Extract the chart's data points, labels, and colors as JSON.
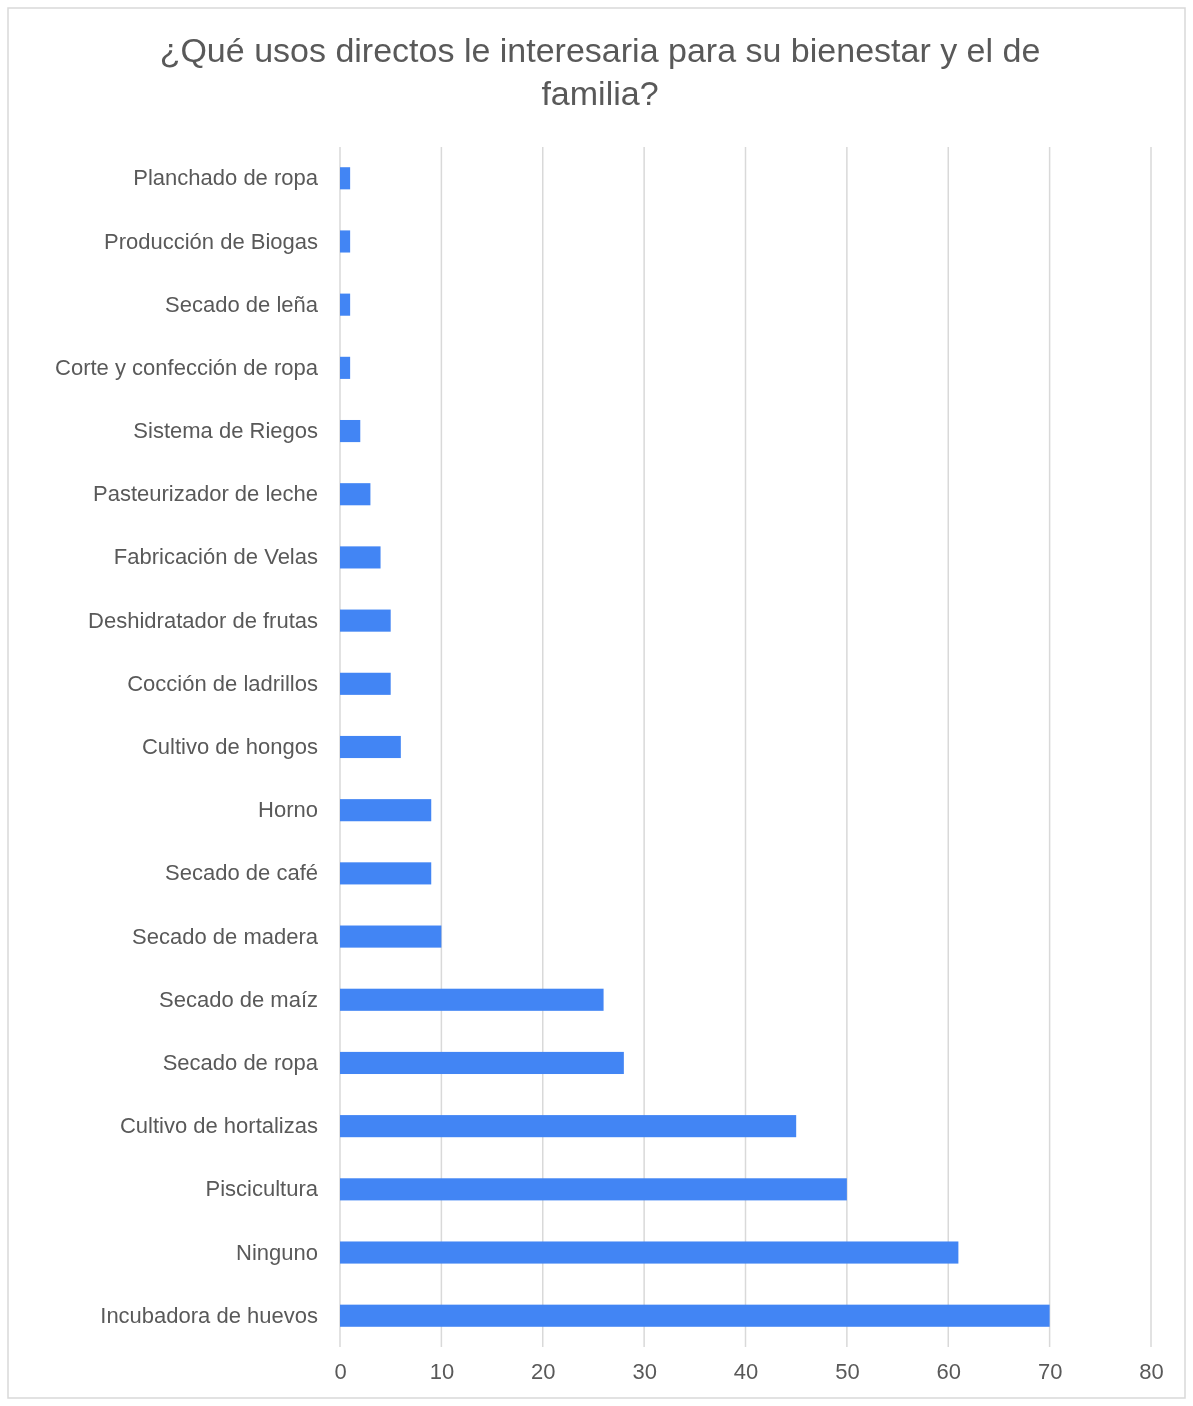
{
  "chart_data": {
    "type": "bar",
    "orientation": "horizontal",
    "title": "¿Qué usos directos le interesaria para su bienestar y el de familia?",
    "categories": [
      "Planchado de ropa",
      "Producción de Biogas",
      "Secado de leña",
      "Corte y confección de ropa",
      "Sistema de Riegos",
      "Pasteurizador de leche",
      "Fabricación de Velas",
      "Deshidratador de frutas",
      "Cocción de ladrillos",
      "Cultivo de hongos",
      "Horno",
      "Secado de café",
      "Secado de madera",
      "Secado de maíz",
      "Secado de ropa",
      "Cultivo de hortalizas",
      "Piscicultura",
      "Ninguno",
      "Incubadora de huevos"
    ],
    "values": [
      1,
      1,
      1,
      1,
      2,
      3,
      4,
      5,
      5,
      6,
      9,
      9,
      10,
      26,
      28,
      45,
      50,
      61,
      70
    ],
    "color": "#4285f4",
    "xlim": [
      0,
      80
    ],
    "xticks": [
      0,
      10,
      20,
      30,
      40,
      50,
      60,
      70,
      80
    ],
    "grid": "x"
  }
}
